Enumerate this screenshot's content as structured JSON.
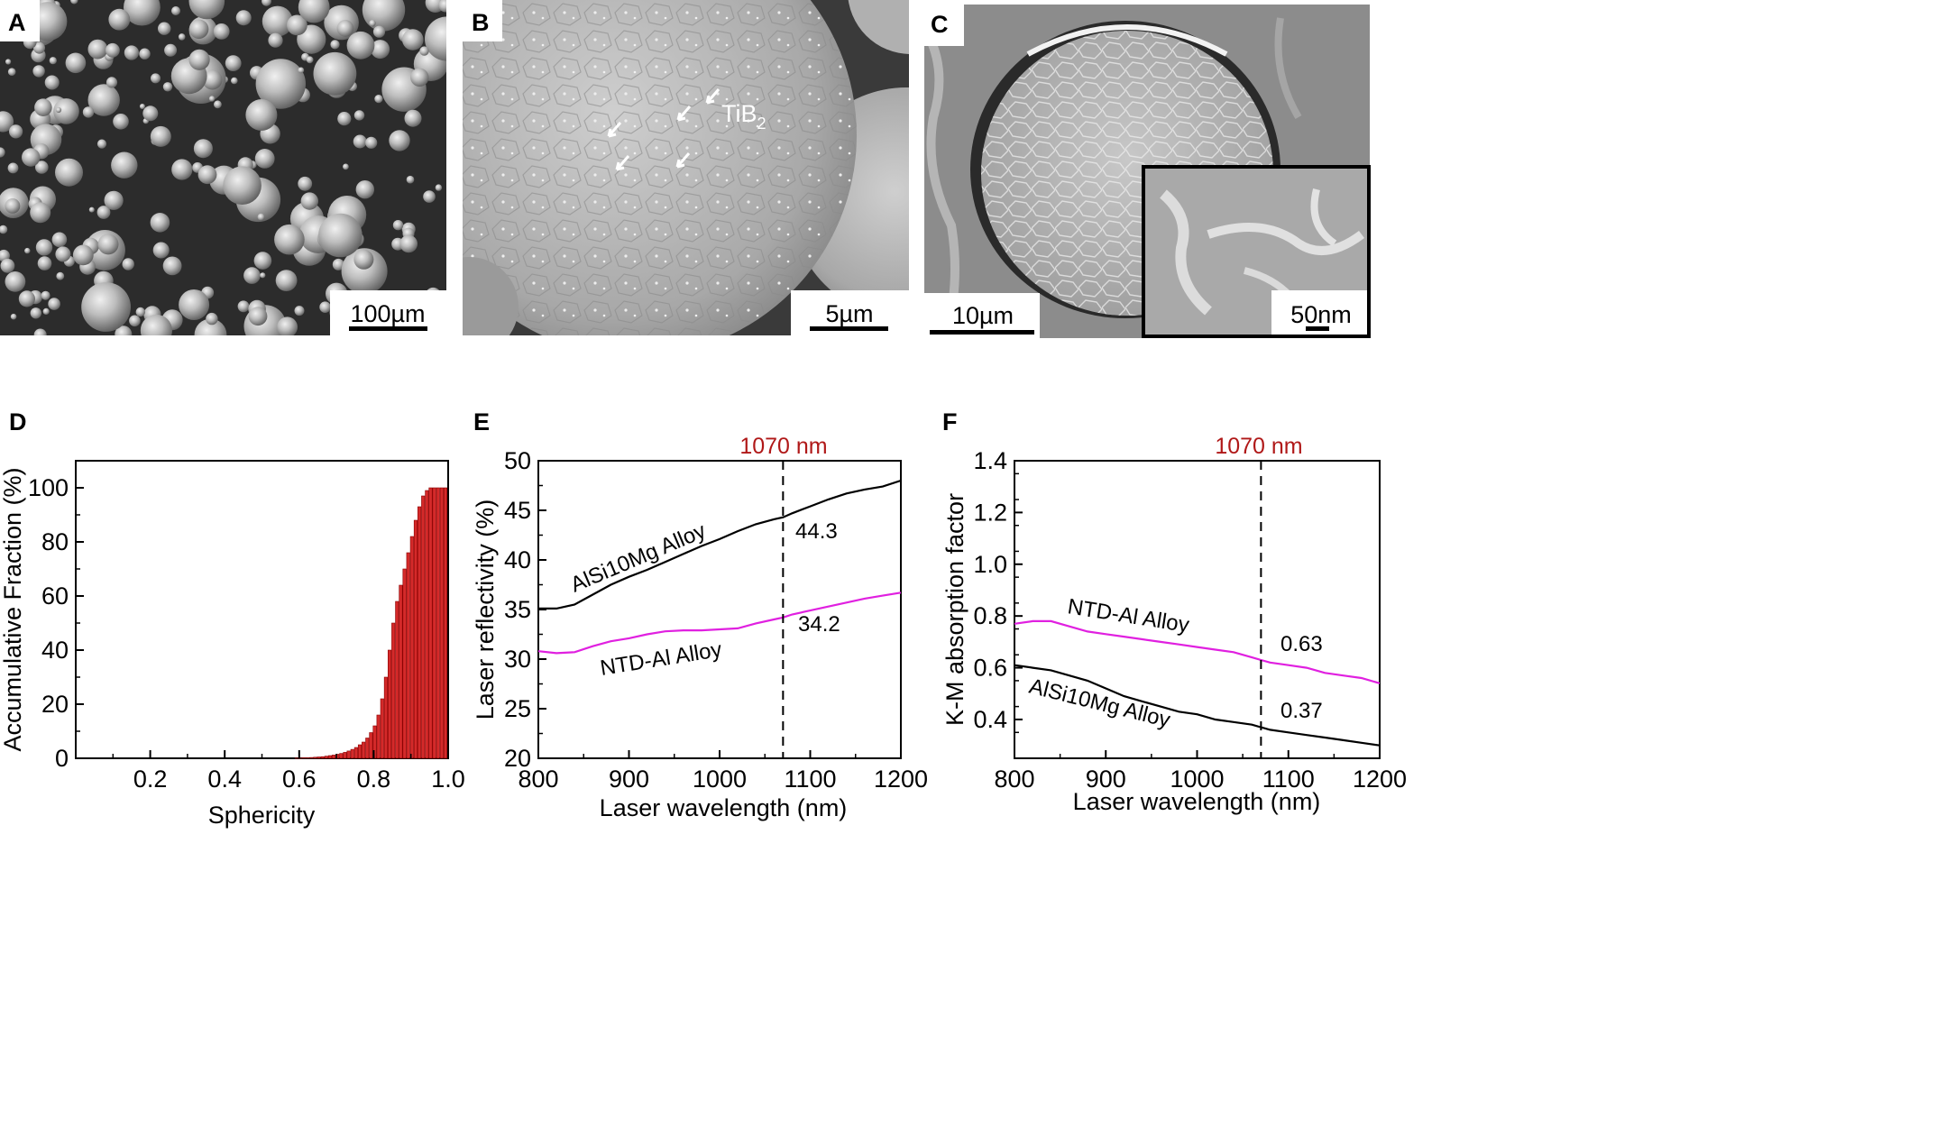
{
  "panels": {
    "A": {
      "label": "A",
      "scale_bar": "100µm"
    },
    "B": {
      "label": "B",
      "scale_bar": "5µm",
      "annotation": "TiB",
      "annotation_sub": "2"
    },
    "C": {
      "label": "C",
      "scale_bar": "10µm",
      "inset_scale_bar": "50nm"
    },
    "D": {
      "label": "D"
    },
    "E": {
      "label": "E",
      "marker_label": "1070 nm",
      "value_upper": "44.3",
      "value_lower": "34.2",
      "curve_label_upper": "AlSi10Mg Alloy",
      "curve_label_lower": "NTD-Al Alloy"
    },
    "F": {
      "label": "F",
      "marker_label": "1070 nm",
      "value_upper": "0.63",
      "value_lower": "0.37",
      "curve_label_upper": "NTD-Al Alloy",
      "curve_label_lower": "AlSi10Mg Alloy"
    }
  },
  "colors": {
    "bar_fill": "#d42a2a",
    "magenta": "#e020e0",
    "marker_red": "#b01818",
    "sem_bg": "#333333"
  },
  "chart_data": [
    {
      "panel": "D",
      "type": "bar",
      "xlabel": "Sphericity",
      "ylabel": "Accumulative Fraction (%)",
      "xlim": [
        0,
        1.0
      ],
      "ylim": [
        0,
        110
      ],
      "xticks": [
        "0.2",
        "0.4",
        "0.6",
        "0.8",
        "1.0"
      ],
      "yticks": [
        "0",
        "20",
        "40",
        "60",
        "80",
        "100"
      ],
      "x": [
        0.6,
        0.61,
        0.62,
        0.63,
        0.64,
        0.65,
        0.66,
        0.67,
        0.68,
        0.69,
        0.7,
        0.71,
        0.72,
        0.73,
        0.74,
        0.75,
        0.76,
        0.77,
        0.78,
        0.79,
        0.8,
        0.81,
        0.82,
        0.83,
        0.84,
        0.85,
        0.86,
        0.87,
        0.88,
        0.89,
        0.9,
        0.91,
        0.92,
        0.93,
        0.94,
        0.95,
        0.96,
        0.97,
        0.98,
        0.99,
        1.0
      ],
      "values": [
        0.1,
        0.1,
        0.2,
        0.2,
        0.3,
        0.4,
        0.5,
        0.6,
        0.8,
        1.0,
        1.2,
        1.5,
        1.8,
        2.2,
        2.7,
        3.3,
        4,
        5,
        6,
        7.5,
        9.5,
        12,
        16,
        22,
        30,
        40,
        50,
        58,
        64,
        70,
        76,
        82,
        88,
        93,
        97,
        99,
        100,
        100,
        100,
        100,
        100
      ],
      "grid": false
    },
    {
      "panel": "E",
      "type": "line",
      "xlabel": "Laser wavelength (nm)",
      "ylabel": "Laser reflectivity (%)",
      "xlim": [
        800,
        1200
      ],
      "ylim": [
        20,
        50
      ],
      "xticks": [
        "800",
        "900",
        "1000",
        "1100",
        "1200"
      ],
      "yticks": [
        "20",
        "25",
        "30",
        "35",
        "40",
        "45",
        "50"
      ],
      "series": [
        {
          "x": [
            800,
            820,
            840,
            860,
            880,
            900,
            920,
            940,
            960,
            980,
            1000,
            1020,
            1040,
            1060,
            1070,
            1080,
            1100,
            1120,
            1140,
            1160,
            1180,
            1200
          ],
          "values": [
            35.1,
            35.1,
            35.5,
            36.5,
            37.5,
            38.3,
            39.0,
            39.8,
            40.6,
            41.4,
            42.1,
            42.9,
            43.6,
            44.1,
            44.3,
            44.7,
            45.4,
            46.1,
            46.7,
            47.1,
            47.4,
            48.0
          ]
        },
        {
          "x": [
            800,
            820,
            840,
            860,
            880,
            900,
            920,
            940,
            960,
            980,
            1000,
            1020,
            1040,
            1060,
            1070,
            1080,
            1100,
            1120,
            1140,
            1160,
            1180,
            1200
          ],
          "values": [
            30.8,
            30.6,
            30.7,
            31.3,
            31.8,
            32.1,
            32.5,
            32.8,
            32.9,
            32.9,
            33.0,
            33.1,
            33.6,
            34.0,
            34.2,
            34.5,
            34.9,
            35.3,
            35.7,
            36.1,
            36.4,
            36.7
          ]
        }
      ],
      "grid": false
    },
    {
      "panel": "F",
      "type": "line",
      "xlabel": "Laser wavelength (nm)",
      "ylabel": "K-M absorption factor",
      "xlim": [
        800,
        1200
      ],
      "ylim": [
        0.25,
        1.4
      ],
      "xticks": [
        "800",
        "900",
        "1000",
        "1100",
        "1200"
      ],
      "yticks": [
        "0.4",
        "0.6",
        "0.8",
        "1.0",
        "1.2",
        "1.4"
      ],
      "series": [
        {
          "x": [
            800,
            820,
            840,
            860,
            880,
            900,
            920,
            940,
            960,
            980,
            1000,
            1020,
            1040,
            1060,
            1070,
            1080,
            1100,
            1120,
            1140,
            1160,
            1180,
            1200
          ],
          "values": [
            0.77,
            0.78,
            0.78,
            0.76,
            0.74,
            0.73,
            0.72,
            0.71,
            0.7,
            0.69,
            0.68,
            0.67,
            0.66,
            0.64,
            0.63,
            0.62,
            0.61,
            0.6,
            0.58,
            0.57,
            0.56,
            0.54
          ]
        },
        {
          "x": [
            800,
            820,
            840,
            860,
            880,
            900,
            920,
            940,
            960,
            980,
            1000,
            1020,
            1040,
            1060,
            1070,
            1080,
            1100,
            1120,
            1140,
            1160,
            1180,
            1200
          ],
          "values": [
            0.61,
            0.6,
            0.59,
            0.57,
            0.55,
            0.52,
            0.49,
            0.47,
            0.45,
            0.43,
            0.42,
            0.4,
            0.39,
            0.38,
            0.37,
            0.36,
            0.35,
            0.34,
            0.33,
            0.32,
            0.31,
            0.3
          ]
        }
      ],
      "grid": false
    }
  ]
}
